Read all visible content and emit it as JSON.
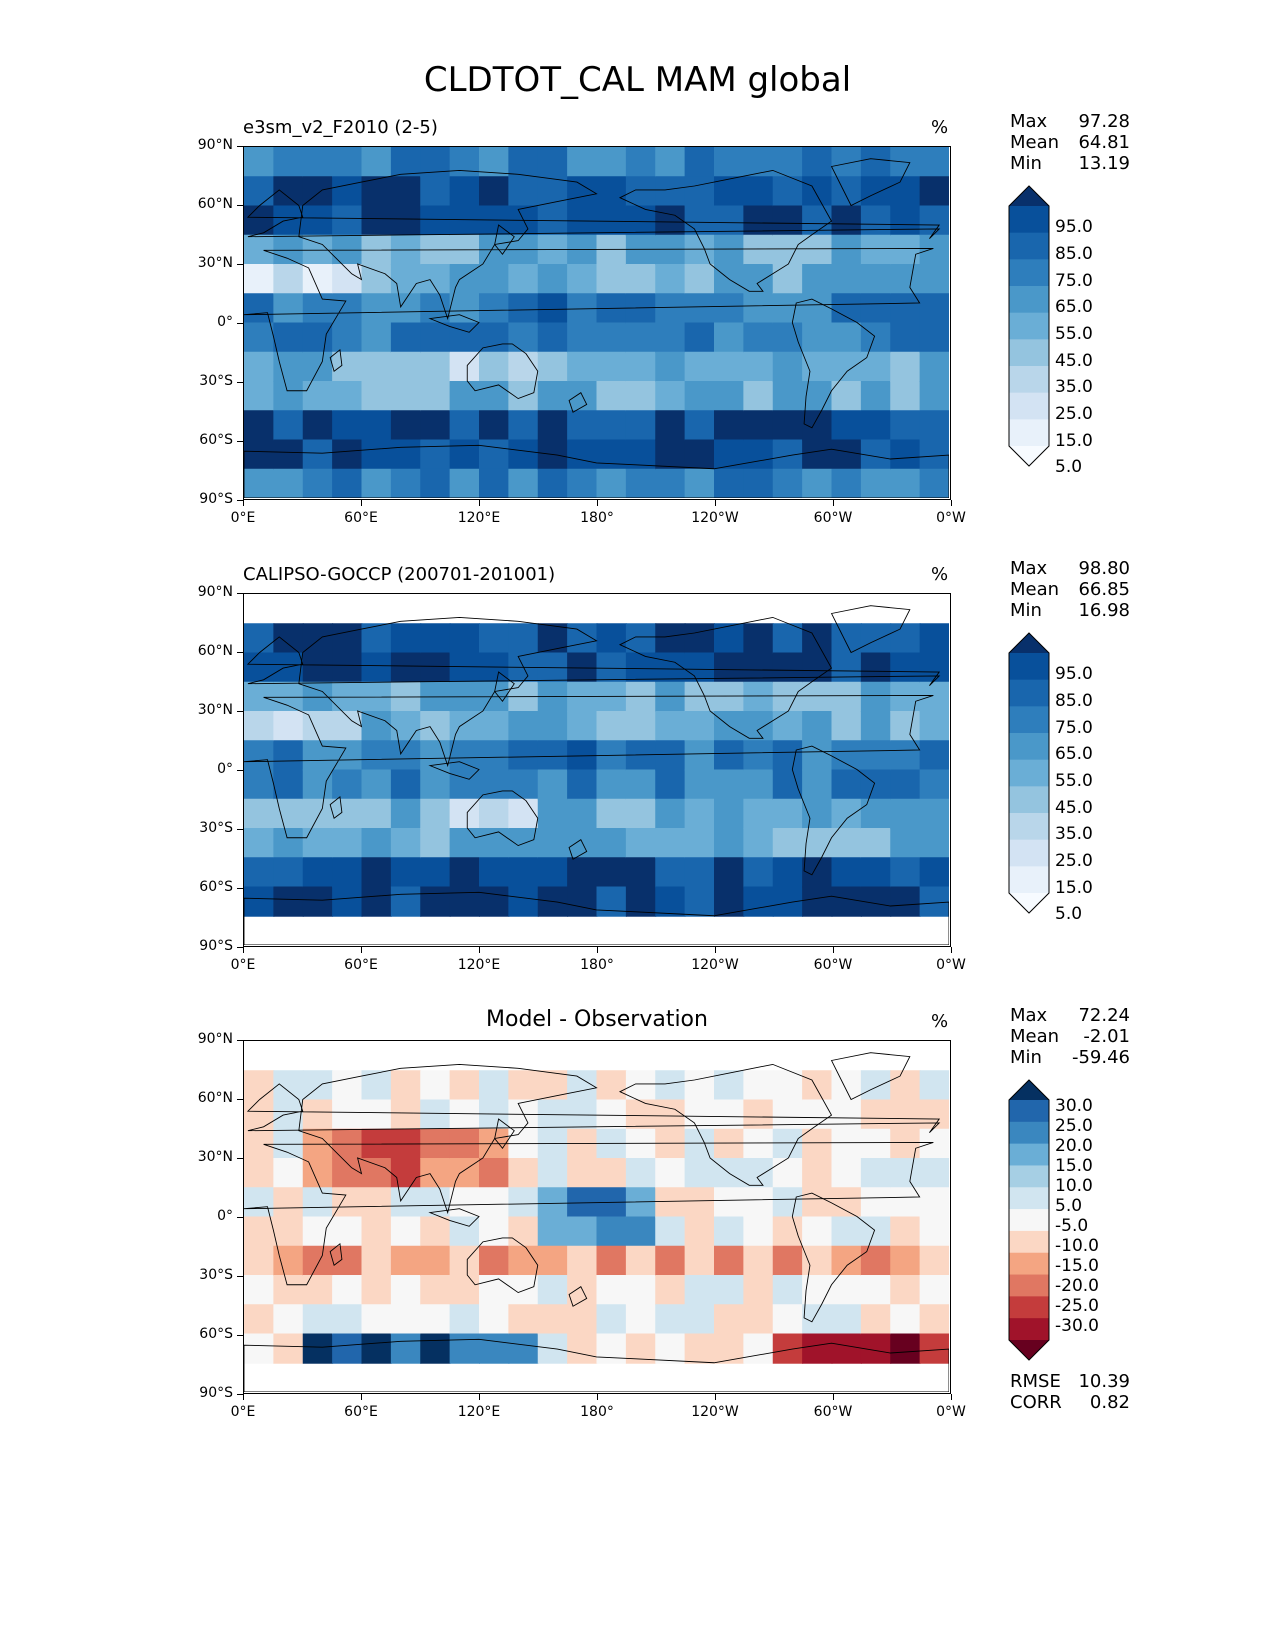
{
  "figure": {
    "title": "CLDTOT_CAL MAM global"
  },
  "axes": {
    "lat_ticks": [
      "90°N",
      "60°N",
      "30°N",
      "0°",
      "30°S",
      "60°S",
      "90°S"
    ],
    "lon_ticks": [
      "0°E",
      "60°E",
      "120°E",
      "180°",
      "120°W",
      "60°W",
      "0°W"
    ]
  },
  "panels": [
    {
      "id": "model",
      "left_title": "e3sm_v2_F2010 (2-5)",
      "center_title": "",
      "units": "%",
      "stats": [
        {
          "label": "Max",
          "value": "97.28"
        },
        {
          "label": "Mean",
          "value": "64.81"
        },
        {
          "label": "Min",
          "value": "13.19"
        }
      ],
      "colorbar": {
        "labels": [
          "95.0",
          "85.0",
          "75.0",
          "65.0",
          "55.0",
          "45.0",
          "35.0",
          "25.0",
          "15.0",
          "5.0"
        ],
        "colors": [
          "#08306b",
          "#08509b",
          "#1966ad",
          "#2e7ebc",
          "#4a98c9",
          "#6aaed6",
          "#94c4df",
          "#b9d6ea",
          "#d3e3f3",
          "#e8f1fa",
          "#f7fbff"
        ]
      }
    },
    {
      "id": "obs",
      "left_title": "CALIPSO-GOCCP (200701-201001)",
      "center_title": "",
      "units": "%",
      "stats": [
        {
          "label": "Max",
          "value": "98.80"
        },
        {
          "label": "Mean",
          "value": "66.85"
        },
        {
          "label": "Min",
          "value": "16.98"
        }
      ],
      "colorbar": {
        "labels": [
          "95.0",
          "85.0",
          "75.0",
          "65.0",
          "55.0",
          "45.0",
          "35.0",
          "25.0",
          "15.0",
          "5.0"
        ],
        "colors": [
          "#08306b",
          "#08509b",
          "#1966ad",
          "#2e7ebc",
          "#4a98c9",
          "#6aaed6",
          "#94c4df",
          "#b9d6ea",
          "#d3e3f3",
          "#e8f1fa",
          "#f7fbff"
        ]
      }
    },
    {
      "id": "diff",
      "left_title": "",
      "center_title": "Model - Observation",
      "units": "%",
      "stats": [
        {
          "label": "Max",
          "value": "72.24"
        },
        {
          "label": "Mean",
          "value": "-2.01"
        },
        {
          "label": "Min",
          "value": "-59.46"
        }
      ],
      "extra_stats": [
        {
          "label": "RMSE",
          "value": "10.39"
        },
        {
          "label": "CORR",
          "value": "0.82"
        }
      ],
      "colorbar": {
        "labels": [
          "30.0",
          "25.0",
          "20.0",
          "15.0",
          "10.0",
          "5.0",
          "-5.0",
          "-10.0",
          "-15.0",
          "-20.0",
          "-25.0",
          "-30.0"
        ],
        "colors": [
          "#053061",
          "#2166ac",
          "#3a87bf",
          "#6aaed6",
          "#a6cfe4",
          "#d1e5f0",
          "#f7f7f7",
          "#fbd7c4",
          "#f4a582",
          "#e07762",
          "#c43c3c",
          "#a0132a",
          "#67001f"
        ]
      }
    }
  ]
}
